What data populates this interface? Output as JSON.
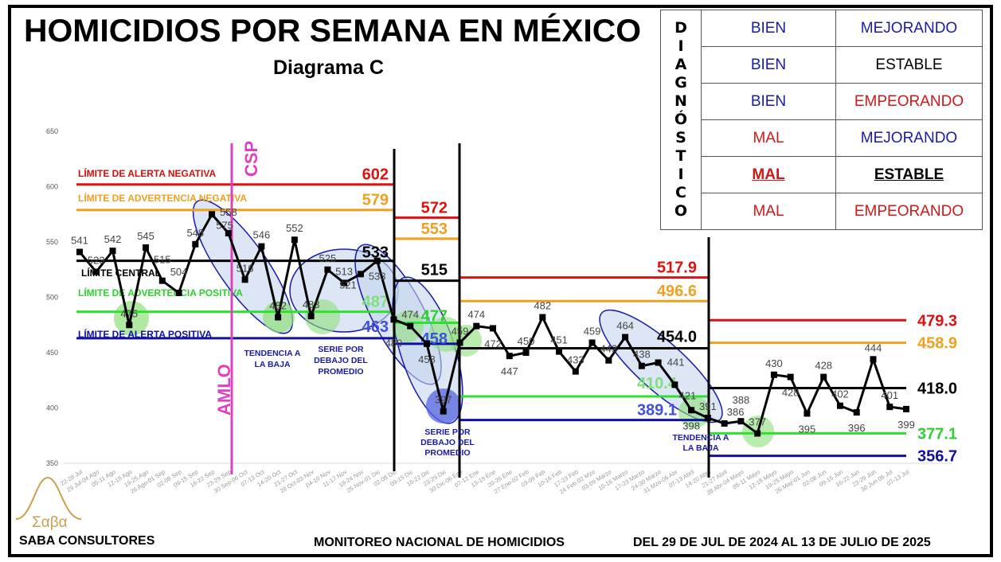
{
  "header": {
    "title": "HOMICIDIOS POR SEMANA EN MÉXICO",
    "subtitle": "Diagrama C"
  },
  "diagnostic": {
    "label": "DIAGNÓSTICO",
    "rows": [
      {
        "state": "BIEN",
        "trend": "MEJORANDO",
        "state_color": "#1a1aa8",
        "trend_color": "#1a1aa8"
      },
      {
        "state": "BIEN",
        "trend": "ESTABLE",
        "state_color": "#1a1aa8",
        "trend_color": "#000000"
      },
      {
        "state": "BIEN",
        "trend": "EMPEORANDO",
        "state_color": "#1a1aa8",
        "trend_color": "#d01818"
      },
      {
        "state": "MAL",
        "trend": "MEJORANDO",
        "state_color": "#d01818",
        "trend_color": "#1a1aa8"
      },
      {
        "state": "MAL",
        "trend": "ESTABLE",
        "state_color": "#d01818",
        "trend_color": "#000000",
        "highlight": true
      },
      {
        "state": "MAL",
        "trend": "EMPEORANDO",
        "state_color": "#d01818",
        "trend_color": "#d01818"
      }
    ]
  },
  "chart_data": {
    "type": "line",
    "title": "HOMICIDIOS POR SEMANA EN MÉXICO",
    "ylim": [
      350,
      650
    ],
    "yticks": [
      650,
      600,
      550,
      500,
      450,
      400,
      350
    ],
    "x": [
      "22-28 Jul",
      "29 Jul-04 Ago",
      "05-11 Ago",
      "12-18 Ago",
      "19-25 Ago",
      "26 Ago-01 Sep",
      "02-08 Sep",
      "09-15 Sep",
      "16-22 Sep",
      "23-29 Sep",
      "30 Sep-06 Oct",
      "07-13 Oct",
      "14-20 Oct",
      "21-27 Oct",
      "28 Oct-03 Nov",
      "04-10 Nov",
      "11-17 Nov",
      "18-24 Nov",
      "25 Nov-01 Dic",
      "02-08 Dic",
      "09-15 Dic",
      "16-22 Dic",
      "23-29 Dic",
      "30 Dic-06 Ene",
      "07-12 Ene",
      "13-19 Ene",
      "20-26 Ene",
      "27 Ene-02 Feb",
      "03-09 Feb",
      "10-16 Feb",
      "17-23 Feb",
      "24 Feb-02 Mzo",
      "03-09 Marzo",
      "10-16 Marzo",
      "17-23 Marzo",
      "24-30 Marzo",
      "31 Mzo-06 Abr",
      "07-13 Abril",
      "14-20 Abril",
      "21-27 Abril",
      "28 Abr-04 Mayo",
      "05-11 Mayo",
      "12-18 Mayo",
      "19-25 Mayo",
      "26 May-01 Jun",
      "02-08 Jun",
      "09-15 Jun",
      "16-22 Jun",
      "23-29 Jun",
      "30 Jun-06 Jul",
      "07-13 Jul"
    ],
    "values": [
      541,
      523,
      542,
      475,
      545,
      515,
      504,
      548,
      575,
      558,
      516,
      546,
      482,
      552,
      483,
      525,
      513,
      521,
      533,
      480,
      474,
      458,
      397,
      459,
      474,
      472,
      447,
      450,
      482,
      451,
      433,
      459,
      443,
      464,
      438,
      441,
      421,
      398,
      391,
      386,
      388,
      377,
      430,
      428,
      395,
      428,
      402,
      396,
      444,
      401,
      399
    ],
    "limit_names": [
      "LÍMITE DE ALERTA NEGATIVA",
      "LÍMITE DE ADVERTENCIA NEGATIVA",
      "LÍMITE CENTRAL",
      "LÍMITE DE ADVERTENCIA POSITIVA",
      "LÍMITE DE ALERTA POSITIVA"
    ],
    "limit_colors": [
      "#e01010",
      "#f0a020",
      "#000000",
      "#30e030",
      "#1010a0"
    ],
    "sections": [
      {
        "from": 1,
        "to": 20,
        "limits": [
          "602",
          "579",
          "533",
          "487",
          "463"
        ]
      },
      {
        "from": 20,
        "to": 24,
        "limits": [
          "572",
          "553",
          "515",
          "477",
          "458"
        ]
      },
      {
        "from": 24,
        "to": 39,
        "limits": [
          "517.9",
          "496.6",
          "454.0",
          "410.4",
          "389.1"
        ]
      },
      {
        "from": 39,
        "to": 51,
        "limits": [
          "479.3",
          "458.9",
          "418.0",
          "377.1",
          "356.7"
        ]
      }
    ],
    "annotations": {
      "amlo": "AMLO",
      "csp": "CSP",
      "trend1": [
        "TENDENCIA A",
        "LA BAJA"
      ],
      "below1": [
        "SERIE POR",
        "DEBAJO DEL",
        "PROMEDIO"
      ],
      "below2": [
        "SERIE POR",
        "DEBAJO DEL",
        "PROMEDIO"
      ],
      "trend2": [
        "TENDENCIA A",
        "LA BAJA"
      ]
    }
  },
  "footer": {
    "logo": "Σαβα",
    "company": "SABA CONSULTORES",
    "monitor": "MONITOREO NACIONAL DE HOMICIDIOS",
    "period": "DEL 29 DE JUL DE 2024 AL 13  DE JULIO DE 2025"
  }
}
